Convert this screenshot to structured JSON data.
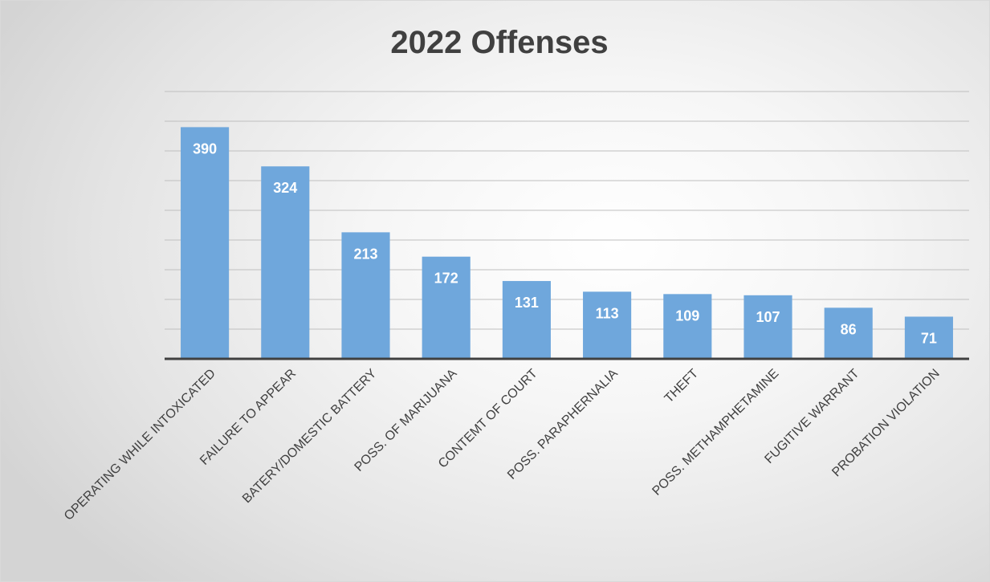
{
  "chart_data": {
    "type": "bar",
    "title": "2022 Offenses",
    "xlabel": "",
    "ylabel": "",
    "categories": [
      "OPERATING WHILE INTOXICATED",
      "FAILURE TO APPEAR",
      "BATERY/DOMESTIC BATTERY",
      "POSS. OF MARIJUANA",
      "CONTEMT OF COURT",
      "POSS. PARAPHERNALIA",
      "THEFT",
      "POSS. METHAMPHETAMINE",
      "FUGITIVE WARRANT",
      "PROBATION VIOLATION"
    ],
    "values": [
      390,
      324,
      213,
      172,
      131,
      113,
      109,
      107,
      86,
      71
    ],
    "ylim": [
      0,
      450
    ],
    "grid": true,
    "legend": "none",
    "bar_color": "#6fa7dc",
    "axis_color": "#404040",
    "grid_color": "#bfbfbf"
  }
}
